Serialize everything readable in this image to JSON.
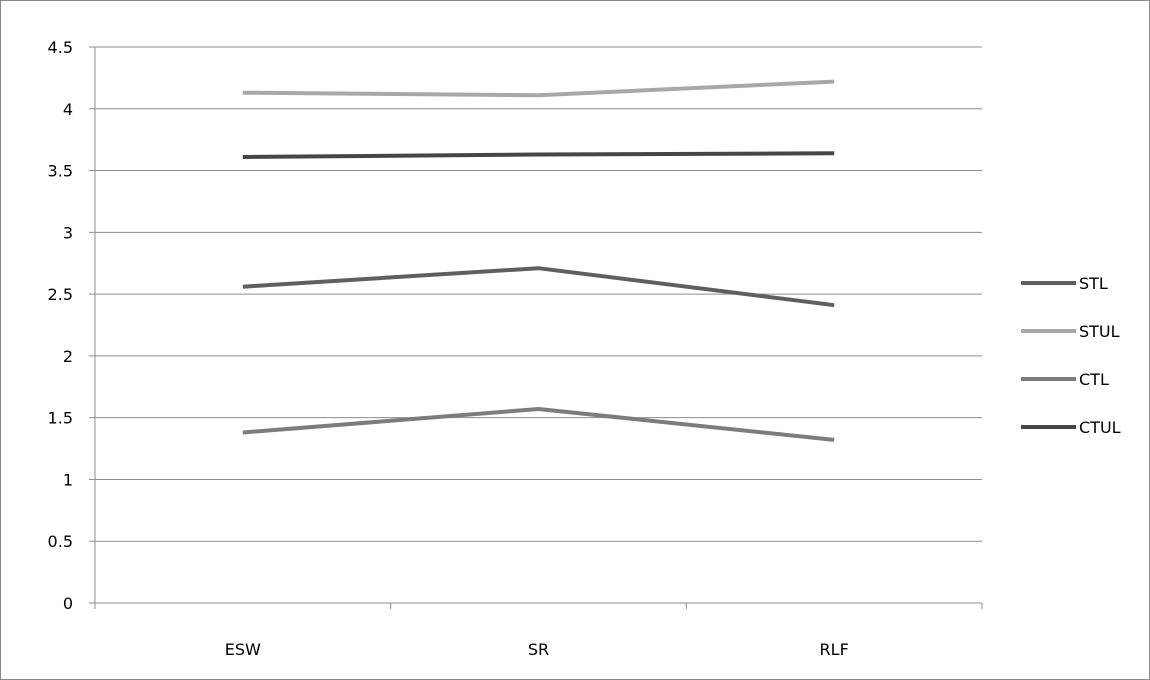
{
  "chart_data": {
    "type": "line",
    "title": "",
    "xlabel": "",
    "ylabel": "",
    "categories": [
      "ESW",
      "SR",
      "RLF"
    ],
    "ylim": [
      0,
      4.5
    ],
    "y_ticks": [
      "0",
      "0.5",
      "1",
      "1.5",
      "2",
      "2.5",
      "3",
      "3.5",
      "4",
      "4.5"
    ],
    "grid": true,
    "legend_position": "right",
    "series": [
      {
        "name": "STL",
        "color": "#5f5f5f",
        "values": [
          2.56,
          2.71,
          2.41
        ]
      },
      {
        "name": "STUL",
        "color": "#a8a8a8",
        "values": [
          4.13,
          4.11,
          4.22
        ]
      },
      {
        "name": "CTL",
        "color": "#7c7c7c",
        "values": [
          1.38,
          1.57,
          1.32
        ]
      },
      {
        "name": "CTUL",
        "color": "#464646",
        "values": [
          3.61,
          3.63,
          3.64
        ]
      }
    ]
  }
}
